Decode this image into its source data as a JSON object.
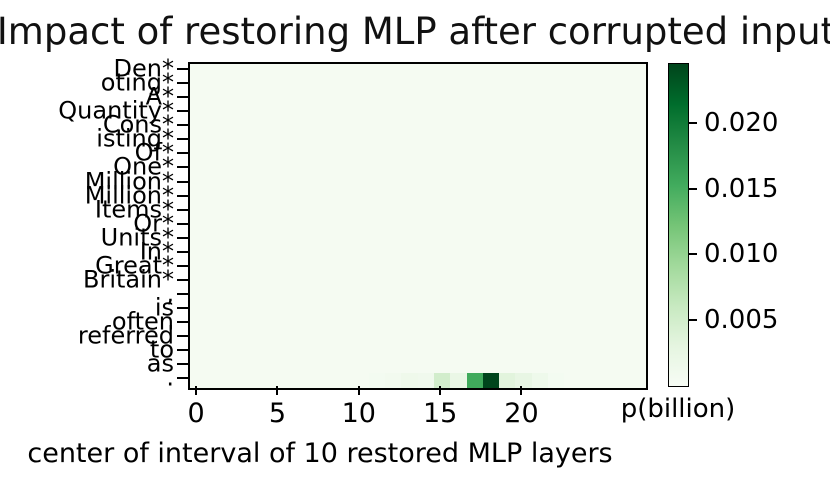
{
  "figure": {
    "title": "Impact of restoring MLP after corrupted input",
    "xlabel": "center of interval of 10 restored MLP layers",
    "colorbar_label": "p(billion)"
  },
  "chart_data": {
    "type": "heatmap",
    "title": "Impact of restoring MLP after corrupted input",
    "xlabel": "center of interval of 10 restored MLP layers",
    "ylabel": "",
    "colorbar_label": "p(billion)",
    "colormap": "Greens",
    "colormap_anchors": [
      "#f7fcf5",
      "#e5f5e0",
      "#c7e9c0",
      "#a1d99b",
      "#74c476",
      "#41ab5d",
      "#238b45",
      "#006d2c",
      "#00441b"
    ],
    "vmin": 0.0,
    "vmax": 0.0246,
    "colorbar_ticks": [
      0.005,
      0.01,
      0.015,
      0.02
    ],
    "x_ticks": [
      0,
      5,
      10,
      15,
      20
    ],
    "n_cols": 28,
    "corrupted_token_marker": "*",
    "row_tokens": [
      "Den*",
      "oting*",
      "A*",
      "Quantity*",
      "Cons*",
      "isting*",
      "Of*",
      "One*",
      "Million*",
      "Million*",
      "Items*",
      "Or*",
      "Units*",
      "In*",
      "Great*",
      "Britain*",
      ",",
      "is",
      "often",
      "referred",
      "to",
      "as",
      "."
    ],
    "other_rows_value": 0.0004,
    "last_row_values": [
      0.0004,
      0.0004,
      0.0004,
      0.0004,
      0.0004,
      0.0004,
      0.0004,
      0.0004,
      0.0004,
      0.0004,
      0.0004,
      0.0006,
      0.0009,
      0.0014,
      0.0012,
      0.005,
      0.0022,
      0.0155,
      0.0245,
      0.0034,
      0.0025,
      0.0015,
      0.0006,
      0.0004,
      0.0004,
      0.0004,
      0.0004,
      0.0004
    ],
    "legend_position": "right-colorbar",
    "grid": false
  }
}
